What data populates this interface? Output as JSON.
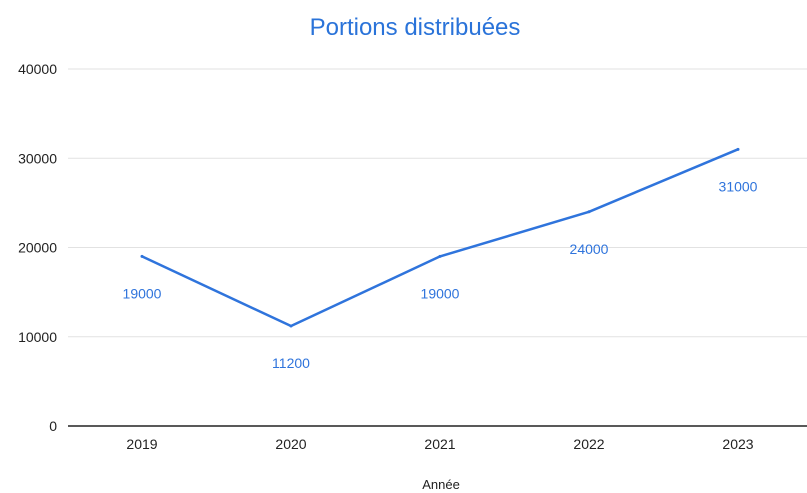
{
  "chart_data": {
    "type": "line",
    "title": "Portions distribuées",
    "xlabel": "Année",
    "ylabel": "",
    "categories": [
      "2019",
      "2020",
      "2021",
      "2022",
      "2023"
    ],
    "series": [
      {
        "values": [
          19000,
          11200,
          19000,
          24000,
          31000
        ]
      }
    ],
    "data_labels": [
      "19000",
      "11200",
      "19000",
      "24000",
      "31000"
    ],
    "y_ticks": [
      "0",
      "10000",
      "20000",
      "30000",
      "40000"
    ],
    "ylim": [
      0,
      40000
    ],
    "grid": true,
    "legend": "none",
    "colors": {
      "line": "#2f74dc",
      "title": "#2a73d9",
      "grid": "#e2e2e2",
      "axis": "#222222"
    }
  }
}
